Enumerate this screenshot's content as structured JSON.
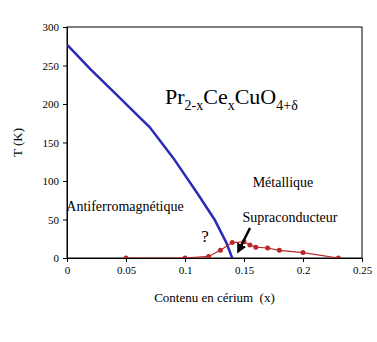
{
  "chart_data": {
    "type": "line",
    "title": [
      "Pr",
      "2-x",
      "Ce",
      "x",
      "CuO",
      "4+δ"
    ],
    "x_label": "Contenu en cérium  (x)",
    "y_label": "T (K)",
    "xlim": [
      0,
      0.25
    ],
    "xticks": [
      0,
      0.05,
      0.1,
      0.15,
      0.2,
      0.25
    ],
    "ylim": [
      0,
      300
    ],
    "yticks": [
      0,
      50,
      100,
      150,
      200,
      250,
      300
    ],
    "grid": false,
    "annotations": [
      "Métallique",
      "Antiferromagnétique",
      "Supraconducteur",
      "?"
    ],
    "series": [
      {
        "color": "#2a2ab8",
        "marker": "none",
        "line_style": "solid",
        "x": [
          0,
          0.02,
          0.04,
          0.06,
          0.07,
          0.09,
          0.11,
          0.125,
          0.135,
          0.14
        ],
        "values": [
          277,
          245,
          215,
          185,
          170,
          130,
          85,
          50,
          20,
          0
        ]
      },
      {
        "color": "#b8282a",
        "marker": "circle",
        "line_style": "solid",
        "x": [
          0.05,
          0.1,
          0.12,
          0.13,
          0.14,
          0.15,
          0.155,
          0.16,
          0.17,
          0.18,
          0.2,
          0.23
        ],
        "values": [
          0,
          0,
          2,
          10,
          20,
          21,
          17,
          14,
          13,
          10,
          7,
          0
        ]
      }
    ]
  }
}
